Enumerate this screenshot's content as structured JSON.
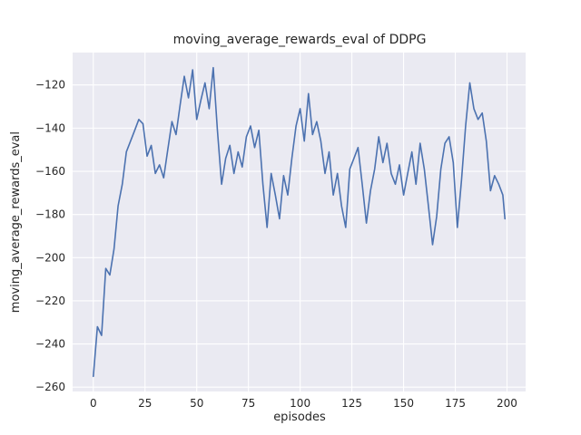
{
  "chart_data": {
    "type": "line",
    "title": "moving_average_rewards_eval of DDPG",
    "xlabel": "episodes",
    "ylabel": "moving_average_rewards_eval",
    "xlim": [
      -10,
      209
    ],
    "ylim": [
      -262,
      -105
    ],
    "xticks": [
      0,
      25,
      50,
      75,
      100,
      125,
      150,
      175,
      200
    ],
    "yticks": [
      -260,
      -240,
      -220,
      -200,
      -180,
      -160,
      -140,
      -120
    ],
    "grid": true,
    "legend": false,
    "colors": {
      "line": "#4c72b0",
      "plot_background": "#eaeaf2",
      "grid": "#ffffff",
      "text": "#262626",
      "figure_background": "#ffffff"
    },
    "series": [
      {
        "name": "moving_average_rewards_eval",
        "x": [
          0,
          2,
          4,
          6,
          8,
          10,
          12,
          14,
          16,
          18,
          20,
          22,
          24,
          26,
          28,
          30,
          32,
          34,
          36,
          38,
          40,
          42,
          44,
          46,
          48,
          50,
          52,
          54,
          56,
          58,
          60,
          62,
          64,
          66,
          68,
          70,
          72,
          74,
          76,
          78,
          80,
          82,
          84,
          86,
          88,
          90,
          92,
          94,
          96,
          98,
          100,
          102,
          104,
          106,
          108,
          110,
          112,
          114,
          116,
          118,
          120,
          122,
          124,
          126,
          128,
          130,
          132,
          134,
          136,
          138,
          140,
          142,
          144,
          146,
          148,
          150,
          152,
          154,
          156,
          158,
          160,
          162,
          164,
          166,
          168,
          170,
          172,
          174,
          176,
          178,
          180,
          182,
          184,
          186,
          188,
          190,
          192,
          194,
          196,
          198,
          199
        ],
        "y": [
          -255,
          -232,
          -236,
          -205,
          -208,
          -196,
          -176,
          -166,
          -151,
          -146,
          -141,
          -136,
          -138,
          -153,
          -148,
          -161,
          -157,
          -163,
          -150,
          -137,
          -143,
          -129,
          -116,
          -126,
          -113,
          -136,
          -127,
          -119,
          -131,
          -112,
          -141,
          -166,
          -154,
          -148,
          -161,
          -151,
          -158,
          -144,
          -139,
          -149,
          -141,
          -166,
          -186,
          -161,
          -171,
          -182,
          -162,
          -171,
          -154,
          -139,
          -131,
          -146,
          -124,
          -143,
          -137,
          -146,
          -161,
          -151,
          -171,
          -161,
          -176,
          -186,
          -159,
          -154,
          -149,
          -166,
          -184,
          -169,
          -159,
          -144,
          -156,
          -147,
          -161,
          -166,
          -157,
          -171,
          -161,
          -151,
          -166,
          -147,
          -159,
          -176,
          -194,
          -181,
          -159,
          -147,
          -144,
          -156,
          -186,
          -164,
          -139,
          -119,
          -131,
          -136,
          -133,
          -146,
          -169,
          -162,
          -166,
          -171,
          -182
        ]
      }
    ]
  }
}
